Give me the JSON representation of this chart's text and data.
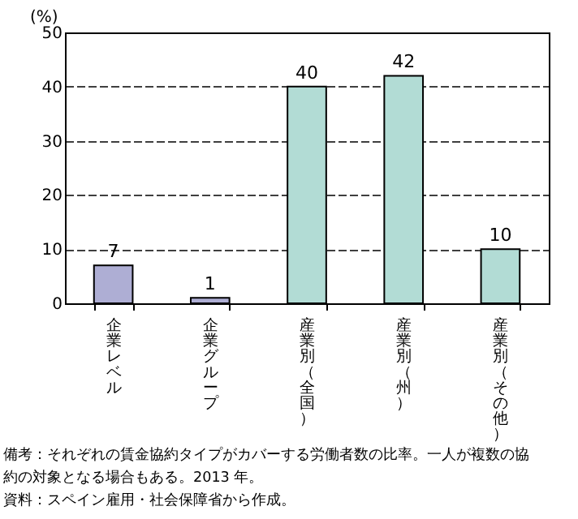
{
  "chart_data": {
    "type": "bar",
    "ylabel": "(%)",
    "categories": [
      "企業レベル",
      "企業グループ",
      "産業別（全国）",
      "産業別（州）",
      "産業別（その他）"
    ],
    "values": [
      7,
      1,
      40,
      42,
      10
    ],
    "colors": [
      "#aeaed4",
      "#aeaed4",
      "#b2dcd5",
      "#b2dcd5",
      "#b2dcd5"
    ],
    "ylim": [
      0,
      50
    ],
    "yticks": [
      0,
      10,
      20,
      30,
      40,
      50
    ],
    "grid": "y",
    "data_labels": true,
    "annotations": [
      "備考：それぞれの賃金協約タイプがカバーする労働者数の比率。一人が複数の協約の対象となる場合もある。2013 年。",
      "資料：スペイン雇用・社会保障省から作成。"
    ]
  }
}
